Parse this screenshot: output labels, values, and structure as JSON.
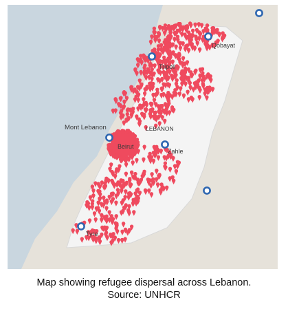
{
  "map": {
    "colors": {
      "sea": "#c9d6df",
      "land": "#e6e2da",
      "country": "#f4f4f4",
      "marker": "#ef4a5e",
      "ring": "#2f67b1"
    },
    "marker_count": 1000,
    "labels": {
      "qobayat": "Qobayat",
      "tripoli": "Tripoli",
      "mont_lebanon": "Mont Lebanon",
      "lebanon": "LEBANON",
      "beirut": "Beirut",
      "zahle": "Zahle",
      "tyre": "Tyre"
    }
  },
  "caption": {
    "line1": "Map showing refugee dispersal across Lebanon.",
    "line2": "Source: UNHCR"
  }
}
